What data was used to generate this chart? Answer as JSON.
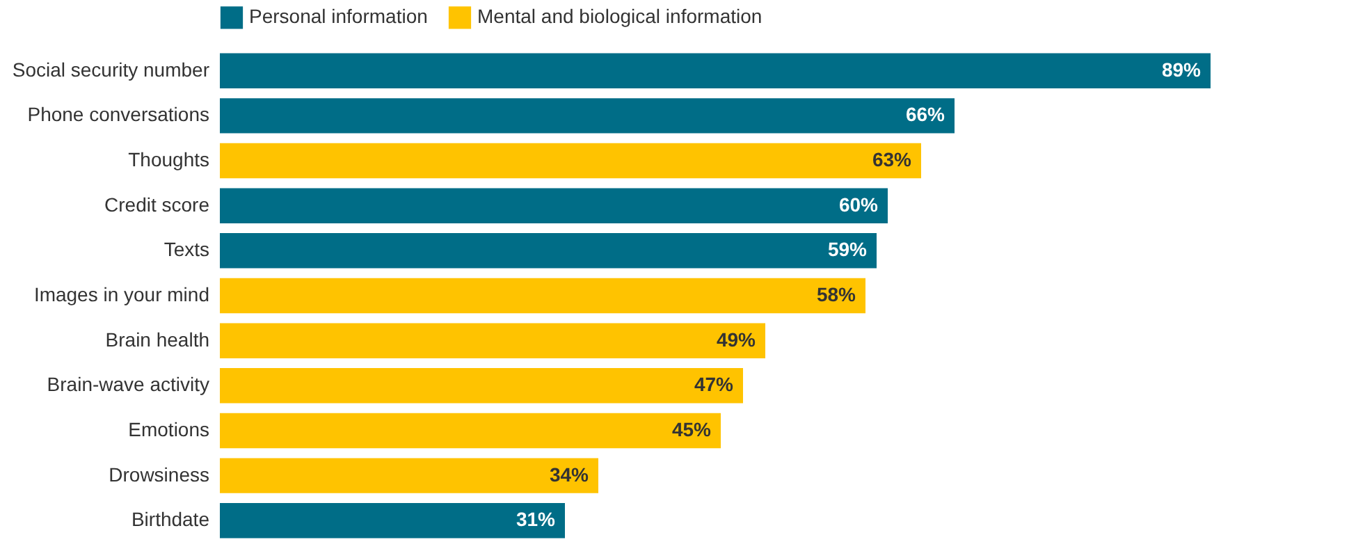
{
  "chart_data": {
    "type": "bar",
    "orientation": "horizontal",
    "categories": [
      "Social security number",
      "Phone conversations",
      "Thoughts",
      "Credit score",
      "Texts",
      "Images in your mind",
      "Brain health",
      "Brain-wave activity",
      "Emotions",
      "Drowsiness",
      "Birthdate"
    ],
    "series": [
      {
        "name": "Personal information",
        "color": "#006d87",
        "values": [
          89,
          66,
          null,
          60,
          59,
          null,
          null,
          null,
          null,
          null,
          31
        ],
        "value_labels": [
          "89%",
          "66%",
          null,
          "60%",
          "59%",
          null,
          null,
          null,
          null,
          null,
          "31%"
        ]
      },
      {
        "name": "Mental and biological information",
        "color": "#ffc300",
        "values": [
          null,
          null,
          63,
          null,
          null,
          58,
          49,
          47,
          45,
          34,
          null
        ],
        "value_labels": [
          null,
          null,
          "63%",
          null,
          null,
          "58%",
          "49%",
          "47%",
          "45%",
          "34%",
          null
        ]
      }
    ],
    "xlim": [
      0,
      100
    ],
    "tick_labels": "y",
    "legend": "top left"
  }
}
